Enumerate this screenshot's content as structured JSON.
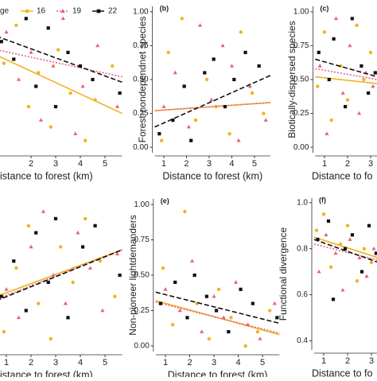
{
  "chart_data": [
    {
      "type": "scatter",
      "legend_title": "ge",
      "xlabel": "istance to forest (km)",
      "xlim": [
        0.6,
        5.7
      ],
      "ylim": [
        -0.04,
        1.04
      ],
      "xticks": [
        2,
        3,
        4,
        5
      ],
      "yticks": [],
      "fit_x": [
        0.6,
        5.7
      ],
      "series": [
        {
          "name": "16",
          "color": "#f0b323",
          "marker": "circle",
          "dash": "none",
          "x": [
            0.9,
            1.4,
            1.9,
            2.3,
            2.8,
            3.1,
            3.6,
            4.2,
            4.6,
            5.3
          ],
          "values": [
            0.62,
            0.9,
            0.3,
            0.55,
            0.15,
            0.72,
            0.4,
            0.05,
            0.35,
            0.6
          ],
          "fit": [
            0.68,
            0.25
          ]
        },
        {
          "name": "19",
          "color": "#e8637a",
          "marker": "triangle",
          "dash": "2 2",
          "x": [
            1.0,
            1.5,
            2.0,
            2.4,
            2.9,
            3.3,
            3.8,
            4.1,
            4.7,
            5.5
          ],
          "values": [
            0.85,
            0.5,
            0.7,
            0.2,
            0.6,
            0.95,
            0.1,
            0.45,
            0.75,
            0.3
          ],
          "fit": [
            0.72,
            0.52
          ]
        },
        {
          "name": "22",
          "color": "#111111",
          "marker": "square",
          "dash": "6 3",
          "x": [
            0.8,
            1.3,
            1.8,
            2.2,
            2.7,
            3.0,
            3.5,
            4.0,
            4.5,
            5.6
          ],
          "values": [
            0.78,
            0.65,
            0.95,
            0.45,
            0.88,
            0.3,
            0.7,
            0.6,
            0.5,
            0.4
          ],
          "fit": [
            0.82,
            0.48
          ]
        }
      ]
    },
    {
      "type": "scatter",
      "title": "(b)",
      "ylabel": "Forest-nondependnet species",
      "xlabel": "Distance to forest (km)",
      "xlim": [
        0.6,
        5.7
      ],
      "ylim": [
        -0.04,
        1.04
      ],
      "xticks": [
        1,
        2,
        3,
        4,
        5
      ],
      "yticks": [
        {
          "value": 0,
          "label": "0.00"
        },
        0.25,
        {
          "value": 0.5,
          "label": "0.50"
        },
        0.75,
        {
          "value": 1,
          "label": "1.00"
        }
      ],
      "fit_x": [
        0.6,
        5.7
      ],
      "series": [
        {
          "color": "#f0b323",
          "marker": "circle",
          "dash": "none",
          "x": [
            0.9,
            1.2,
            1.8,
            2.4,
            2.9,
            3.3,
            3.9,
            4.4,
            4.9,
            5.4
          ],
          "values": [
            0.05,
            0.7,
            0.95,
            0.2,
            0.5,
            0.3,
            0.1,
            0.85,
            0.4,
            0.25
          ],
          "fit": [
            0.27,
            0.33
          ]
        },
        {
          "color": "#e8637a",
          "marker": "triangle",
          "dash": "2 2",
          "x": [
            1.0,
            1.5,
            2.1,
            2.6,
            3.1,
            3.6,
            4.0,
            4.3,
            4.8,
            5.5
          ],
          "values": [
            0.3,
            0.55,
            0.15,
            0.9,
            0.35,
            0.75,
            0.6,
            0.05,
            0.45,
            0.2
          ],
          "fit": [
            0.27,
            0.33
          ]
        },
        {
          "color": "#111111",
          "marker": "square",
          "dash": "6 3",
          "x": [
            0.8,
            1.4,
            1.9,
            2.2,
            2.8,
            3.2,
            3.7,
            4.1,
            4.6,
            5.2
          ],
          "values": [
            0.1,
            0.2,
            0.45,
            0.05,
            0.55,
            0.65,
            0.3,
            0.5,
            0.7,
            0.6
          ],
          "fit": [
            0.15,
            0.53
          ]
        }
      ]
    },
    {
      "type": "scatter",
      "title": "(c)",
      "ylabel": "Biotically-dispersed species",
      "xlabel": "Distance to fo",
      "xlim": [
        0.6,
        5.7
      ],
      "ylim": [
        -0.04,
        1.04
      ],
      "xticks": [
        1,
        2,
        3
      ],
      "yticks": [
        {
          "value": 0,
          "label": "0.00"
        },
        0.25,
        {
          "value": 0.5,
          "label": "0.50"
        },
        0.75,
        {
          "value": 1,
          "label": "1.00"
        }
      ],
      "fit_x": [
        0.6,
        3.3
      ],
      "series": [
        {
          "color": "#f0b323",
          "marker": "circle",
          "dash": "none",
          "x": [
            0.7,
            1.0,
            1.3,
            1.7,
            2.0,
            2.4,
            2.7,
            3.0
          ],
          "values": [
            0.45,
            0.85,
            0.2,
            0.6,
            0.35,
            0.9,
            0.5,
            0.7
          ],
          "fit": [
            0.52,
            0.47
          ]
        },
        {
          "color": "#e8637a",
          "marker": "triangle",
          "dash": "2 2",
          "x": [
            0.8,
            1.1,
            1.5,
            1.8,
            2.1,
            2.5,
            2.8,
            3.1
          ],
          "values": [
            0.6,
            0.1,
            0.95,
            0.4,
            0.75,
            0.25,
            0.55,
            0.45
          ],
          "fit": [
            0.58,
            0.5
          ]
        },
        {
          "color": "#111111",
          "marker": "square",
          "dash": "6 3",
          "x": [
            0.75,
            1.2,
            1.4,
            1.9,
            2.2,
            2.6,
            2.9,
            3.2
          ],
          "values": [
            0.7,
            0.5,
            0.8,
            0.3,
            0.95,
            0.6,
            0.4,
            0.55
          ],
          "fit": [
            0.65,
            0.52
          ]
        }
      ]
    },
    {
      "type": "scatter",
      "xlabel": "istance to forest (km)",
      "xlim": [
        0.6,
        5.7
      ],
      "ylim": [
        -0.04,
        1.04
      ],
      "xticks": [
        1,
        2,
        3,
        4,
        5
      ],
      "yticks": [],
      "fit_x": [
        0.6,
        5.7
      ],
      "series": [
        {
          "color": "#f0b323",
          "marker": "circle",
          "dash": "none",
          "x": [
            0.9,
            1.4,
            1.9,
            2.3,
            2.8,
            3.2,
            3.7,
            4.2,
            4.8,
            5.4
          ],
          "values": [
            0.1,
            0.55,
            0.85,
            0.3,
            0.05,
            0.7,
            0.45,
            0.9,
            0.6,
            0.35
          ],
          "fit": [
            0.35,
            0.68
          ]
        },
        {
          "color": "#e8637a",
          "marker": "triangle",
          "dash": "2 2",
          "x": [
            1.0,
            1.5,
            2.0,
            2.5,
            2.9,
            3.4,
            3.9,
            4.4,
            4.9,
            5.5
          ],
          "values": [
            0.4,
            0.2,
            0.7,
            0.95,
            0.5,
            0.3,
            0.8,
            0.55,
            0.25,
            0.65
          ],
          "fit": [
            0.33,
            0.68
          ]
        },
        {
          "color": "#111111",
          "marker": "square",
          "dash": "6 3",
          "x": [
            0.8,
            1.3,
            1.8,
            2.2,
            2.7,
            3.0,
            3.5,
            4.1,
            4.6,
            5.6
          ],
          "values": [
            0.35,
            0.6,
            0.25,
            0.8,
            0.45,
            0.9,
            0.2,
            0.7,
            0.85,
            0.5
          ],
          "fit": [
            0.32,
            0.68
          ]
        }
      ]
    },
    {
      "type": "scatter",
      "title": "(e)",
      "ylabel": "Non-pioneer lightdemanders",
      "xlabel": "Distance to forest (km)",
      "xlim": [
        0.6,
        5.7
      ],
      "ylim": [
        -0.04,
        1.04
      ],
      "xticks": [
        1,
        2,
        3,
        4,
        5
      ],
      "yticks": [
        {
          "value": 0,
          "label": "0.00"
        },
        0.25,
        {
          "value": 0.5,
          "label": "0.50"
        },
        0.75,
        {
          "value": 1,
          "label": "1.00"
        }
      ],
      "fit_x": [
        0.6,
        5.7
      ],
      "series": [
        {
          "color": "#f0b323",
          "marker": "circle",
          "dash": "none",
          "x": [
            0.9,
            1.3,
            1.8,
            2.3,
            2.8,
            3.2,
            3.7,
            4.3,
            4.8,
            5.3
          ],
          "values": [
            0.55,
            0.15,
            0.95,
            0.3,
            0.05,
            0.4,
            0.2,
            0.0,
            0.1,
            0.25
          ],
          "fit": [
            0.32,
            0.08
          ]
        },
        {
          "color": "#e8637a",
          "marker": "triangle",
          "dash": "2 2",
          "x": [
            1.0,
            1.6,
            2.1,
            2.5,
            3.0,
            3.4,
            3.9,
            4.4,
            4.9,
            5.5
          ],
          "values": [
            0.4,
            0.25,
            0.6,
            0.1,
            0.35,
            0.2,
            0.45,
            0.15,
            0.05,
            0.3
          ],
          "fit": [
            0.31,
            0.09
          ]
        },
        {
          "color": "#111111",
          "marker": "square",
          "dash": "6 3",
          "x": [
            0.8,
            1.4,
            1.9,
            2.2,
            2.7,
            3.1,
            3.6,
            4.1,
            4.6,
            5.6
          ],
          "values": [
            0.3,
            0.45,
            0.2,
            0.5,
            0.35,
            0.25,
            0.1,
            0.4,
            0.3,
            0.2
          ],
          "fit": [
            0.38,
            0.16
          ]
        }
      ]
    },
    {
      "type": "scatter",
      "title": "(f)",
      "ylabel": "Functional divergence",
      "xlabel": "Distance to fo",
      "xlim": [
        0.6,
        5.7
      ],
      "ylim": [
        0.36,
        1.02
      ],
      "xticks": [
        1,
        2,
        3
      ],
      "yticks": [
        0.4,
        0.6,
        0.8,
        {
          "value": 1,
          "label": "1.0"
        }
      ],
      "fit_x": [
        0.6,
        3.3
      ],
      "series": [
        {
          "color": "#f0b323",
          "marker": "circle",
          "dash": "none",
          "x": [
            0.7,
            1.0,
            1.3,
            1.7,
            2.0,
            2.4,
            2.7,
            3.0
          ],
          "values": [
            0.88,
            0.95,
            0.72,
            0.82,
            0.9,
            0.66,
            0.8,
            0.74
          ],
          "fit": [
            0.85,
            0.76
          ]
        },
        {
          "color": "#e8637a",
          "marker": "triangle",
          "dash": "2 2",
          "x": [
            0.8,
            1.1,
            1.5,
            1.8,
            2.1,
            2.5,
            2.8,
            3.1
          ],
          "values": [
            0.7,
            0.86,
            0.78,
            0.62,
            0.84,
            0.76,
            0.68,
            0.8
          ],
          "fit": [
            0.82,
            0.75
          ]
        },
        {
          "color": "#111111",
          "marker": "square",
          "dash": "6 3",
          "x": [
            0.75,
            1.2,
            1.4,
            1.9,
            2.2,
            2.6,
            2.9,
            3.2
          ],
          "values": [
            0.84,
            0.92,
            0.58,
            0.8,
            0.86,
            0.7,
            0.9,
            0.78
          ],
          "fit": [
            0.84,
            0.74
          ]
        }
      ]
    }
  ]
}
